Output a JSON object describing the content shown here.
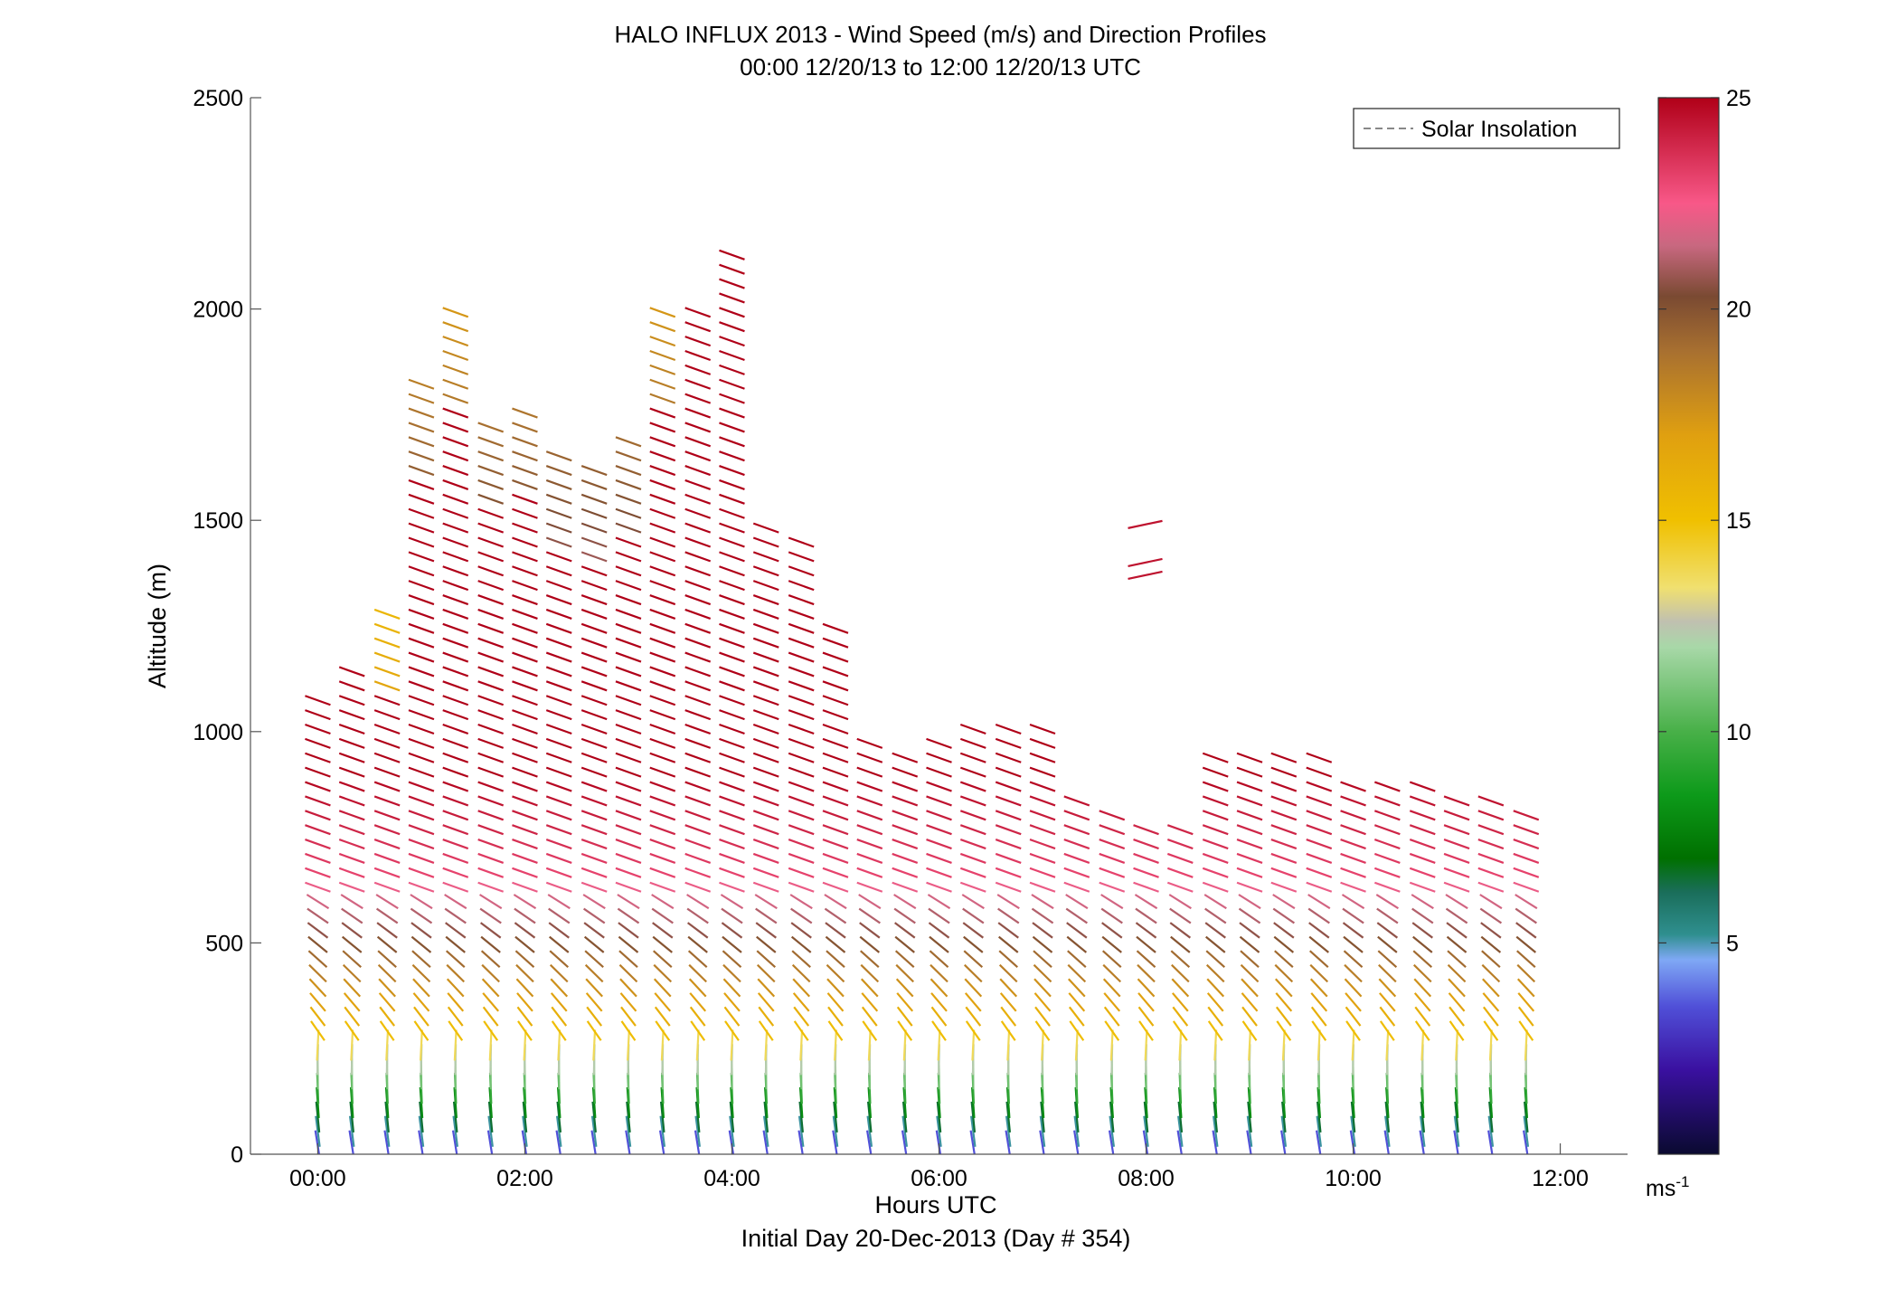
{
  "chart_data": {
    "type": "wind-barb-profile",
    "title": "HALO INFLUX 2013 - Wind Speed (m/s) and Direction Profiles",
    "subtitle": "00:00 12/20/13 to 12:00 12/20/13  UTC",
    "xlabel": "Hours UTC",
    "xlabel2": "Initial Day 20-Dec-2013 (Day # 354)",
    "ylabel": "Altitude (m)",
    "xlim": [
      -0.65,
      12.65
    ],
    "ylim": [
      0,
      2500
    ],
    "x_ticks": [
      0,
      2,
      4,
      6,
      8,
      10,
      12
    ],
    "x_tick_labels": [
      "00:00",
      "02:00",
      "04:00",
      "06:00",
      "08:00",
      "10:00",
      "12:00"
    ],
    "y_ticks": [
      0,
      500,
      1000,
      1500,
      2000,
      2500
    ],
    "y_tick_labels": [
      "0",
      "500",
      "1000",
      "1500",
      "2000",
      "2500"
    ],
    "legend": {
      "position": "top-right",
      "entries": [
        "Solar Insolation"
      ]
    },
    "colorbar": {
      "range": [
        0,
        25
      ],
      "ticks": [
        5,
        10,
        15,
        20,
        25
      ],
      "tick_labels": [
        "5",
        "10",
        "15",
        "20",
        "25"
      ],
      "unit_base": "ms",
      "unit_exp": "-1",
      "color_stops": [
        [
          0,
          "#0a0a30"
        ],
        [
          2,
          "#3a10a0"
        ],
        [
          3.5,
          "#5050d8"
        ],
        [
          4.6,
          "#7fa8f5"
        ],
        [
          5.2,
          "#2f8f8f"
        ],
        [
          6.2,
          "#1a6e5a"
        ],
        [
          7,
          "#007000"
        ],
        [
          8.5,
          "#0d9a1a"
        ],
        [
          10,
          "#48b048"
        ],
        [
          12,
          "#a8d8a8"
        ],
        [
          12.6,
          "#c0c0b0"
        ],
        [
          13.4,
          "#f0e070"
        ],
        [
          15,
          "#f0c000"
        ],
        [
          17,
          "#e0a010"
        ],
        [
          19,
          "#a87030"
        ],
        [
          20.3,
          "#7a4a32"
        ],
        [
          21.5,
          "#c86880"
        ],
        [
          22.5,
          "#f85888"
        ],
        [
          25,
          "#b00018"
        ]
      ]
    },
    "profiles": [
      {
        "t": 0.0,
        "top": 1080
      },
      {
        "t": 0.33,
        "top": 1150
      },
      {
        "t": 0.67,
        "top": 1310
      },
      {
        "t": 1.0,
        "top": 1830
      },
      {
        "t": 1.33,
        "top": 2000
      },
      {
        "t": 1.67,
        "top": 1750
      },
      {
        "t": 2.0,
        "top": 1780
      },
      {
        "t": 2.33,
        "top": 1660
      },
      {
        "t": 2.67,
        "top": 1620
      },
      {
        "t": 3.0,
        "top": 1700
      },
      {
        "t": 3.33,
        "top": 2000
      },
      {
        "t": 3.67,
        "top": 2000
      },
      {
        "t": 4.0,
        "top": 2140
      },
      {
        "t": 4.33,
        "top": 1500
      },
      {
        "t": 4.67,
        "top": 1450
      },
      {
        "t": 5.0,
        "top": 1250
      },
      {
        "t": 5.33,
        "top": 980
      },
      {
        "t": 5.67,
        "top": 960
      },
      {
        "t": 6.0,
        "top": 980
      },
      {
        "t": 6.33,
        "top": 1010
      },
      {
        "t": 6.67,
        "top": 1010
      },
      {
        "t": 7.0,
        "top": 1010
      },
      {
        "t": 7.33,
        "top": 860
      },
      {
        "t": 7.67,
        "top": 830
      },
      {
        "t": 8.0,
        "top": 1500
      },
      {
        "t": 8.33,
        "top": 780
      },
      {
        "t": 8.67,
        "top": 950
      },
      {
        "t": 9.0,
        "top": 970
      },
      {
        "t": 9.33,
        "top": 950
      },
      {
        "t": 9.67,
        "top": 940
      },
      {
        "t": 10.0,
        "top": 900
      },
      {
        "t": 10.33,
        "top": 880
      },
      {
        "t": 10.67,
        "top": 870
      },
      {
        "t": 11.0,
        "top": 860
      },
      {
        "t": 11.33,
        "top": 840
      },
      {
        "t": 11.67,
        "top": 830
      }
    ]
  }
}
